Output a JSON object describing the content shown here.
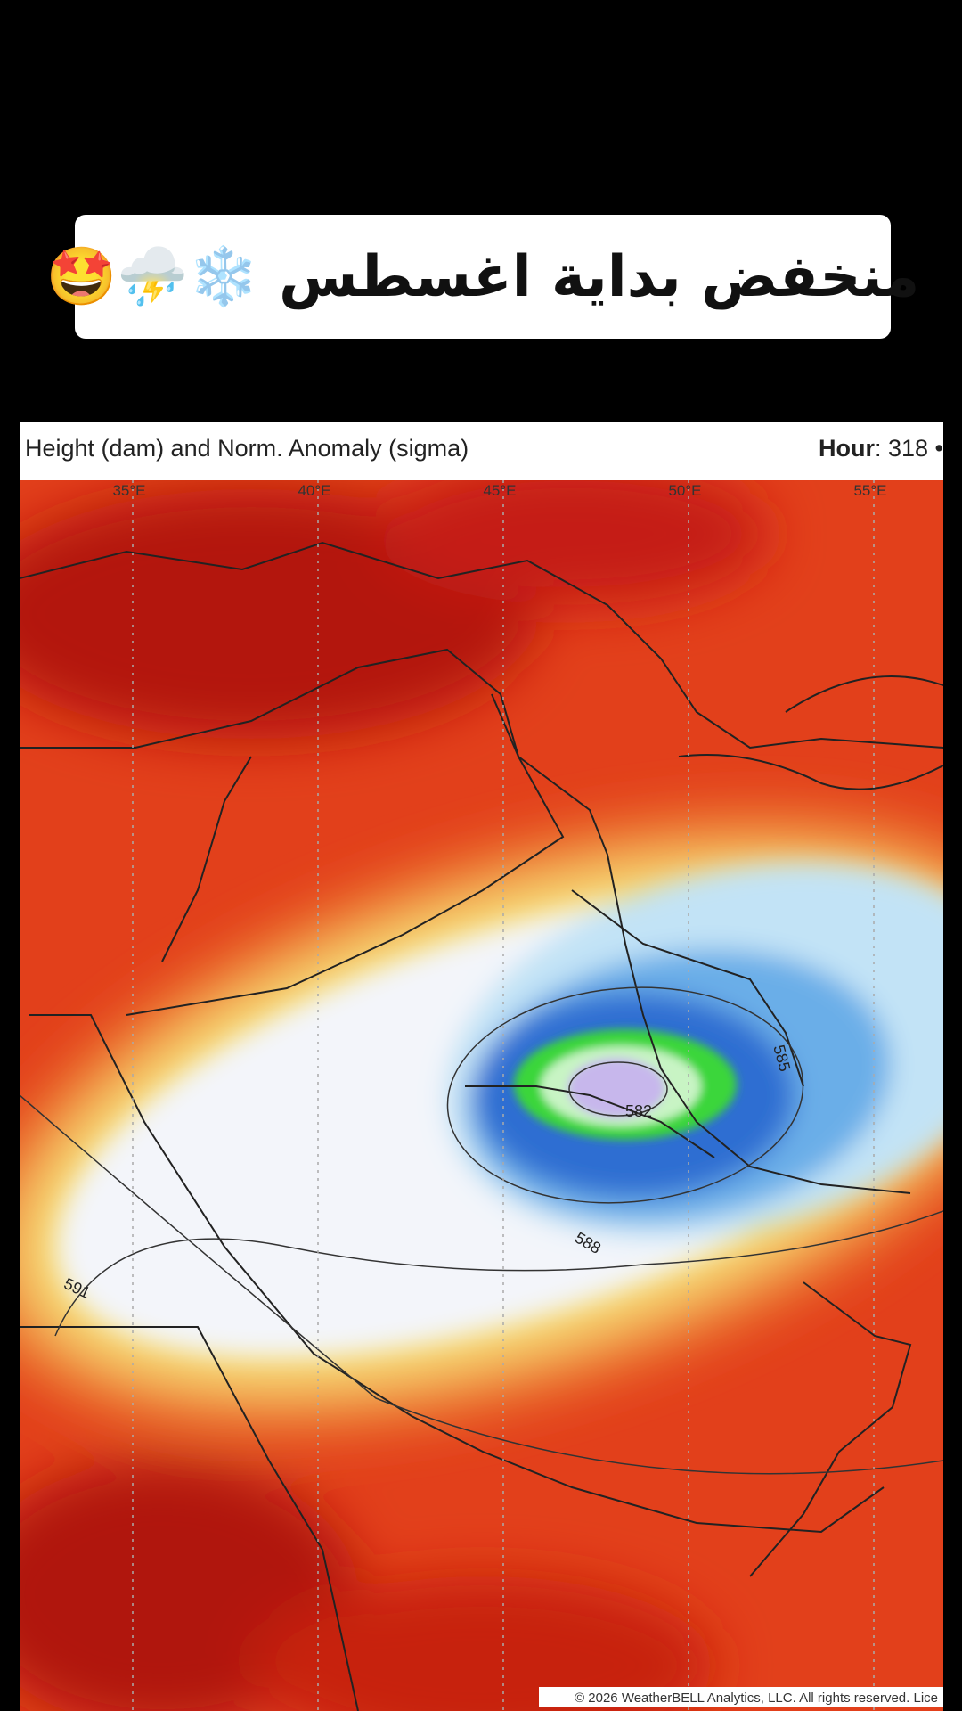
{
  "caption": "منخفض بداية اغسطس ❄️⛈️🤩",
  "map": {
    "title": "Height (dam) and Norm. Anomaly (sigma)",
    "hour_label": "Hour",
    "hour_value": ": 318 •",
    "longitudes": [
      "35°E",
      "40°E",
      "45°E",
      "50°E",
      "55°E"
    ],
    "contour_labels": [
      "585",
      "582",
      "588",
      "591"
    ],
    "copyright": "© 2026 WeatherBELL Analytics, LLC. All rights reserved. Lice"
  }
}
